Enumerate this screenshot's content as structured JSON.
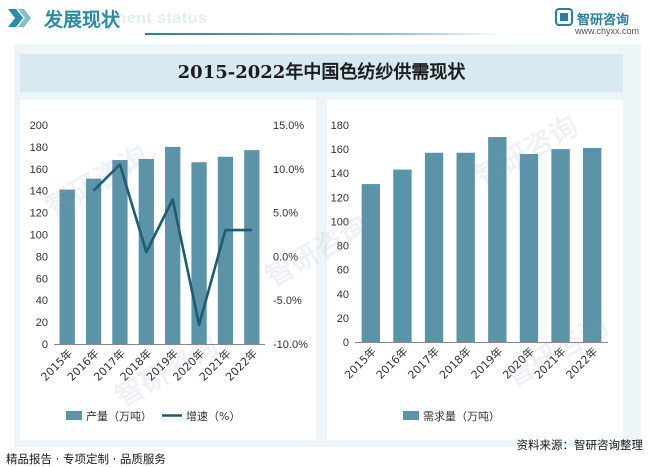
{
  "header": {
    "title": "发展现状",
    "bg_text": "ment status",
    "logo_name": "智研咨询",
    "logo_url": "www.chyxx.com"
  },
  "chart_title": "2015-2022年中国色纺纱供需现状",
  "footer": {
    "left": "精品报告 · 专项定制 · 品质服务",
    "right": "资料来源：智研咨询整理"
  },
  "watermark": "智研咨询",
  "colors": {
    "bar": "#5b93a8",
    "line": "#1e5c75",
    "accent": "#2b8ca6"
  },
  "chart_data": [
    {
      "type": "bar+line",
      "categories": [
        "2015年",
        "2016年",
        "2017年",
        "2018年",
        "2019年",
        "2020年",
        "2021年",
        "2022年"
      ],
      "series": [
        {
          "name": "产量（万吨）",
          "type": "bar",
          "axis": "left",
          "values": [
            141,
            151,
            168,
            169,
            180,
            166,
            171,
            177
          ]
        },
        {
          "name": "增速（%）",
          "type": "line",
          "axis": "right",
          "values": [
            null,
            7.5,
            10.5,
            0.5,
            6.5,
            -7.8,
            3.0,
            3.0
          ]
        }
      ],
      "ylim": [
        0,
        200
      ],
      "y_ticks": [
        "0",
        "20",
        "40",
        "60",
        "80",
        "100",
        "120",
        "140",
        "160",
        "180",
        "200"
      ],
      "y2lim": [
        -10,
        15
      ],
      "y2_ticks": [
        "-10.0%",
        "-5.0%",
        "0.0%",
        "5.0%",
        "10.0%",
        "15.0%"
      ],
      "legend": "bottom",
      "grid": false
    },
    {
      "type": "bar",
      "categories": [
        "2015年",
        "2016年",
        "2017年",
        "2018年",
        "2019年",
        "2020年",
        "2021年",
        "2022年"
      ],
      "series": [
        {
          "name": "需求量（万吨）",
          "type": "bar",
          "values": [
            131,
            143,
            157,
            157,
            170,
            156,
            160,
            161
          ]
        }
      ],
      "ylim": [
        0,
        180
      ],
      "y_ticks": [
        "0",
        "20",
        "40",
        "60",
        "80",
        "100",
        "120",
        "140",
        "160",
        "180"
      ],
      "legend": "bottom",
      "grid": false
    }
  ]
}
